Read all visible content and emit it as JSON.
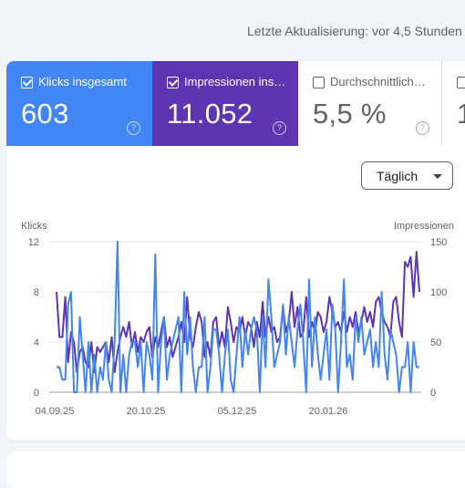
{
  "header": {
    "last_update": "Letzte Aktualisierung: vor 4,5 Stunden"
  },
  "metrics": [
    {
      "label": "Klicks insgesamt",
      "value": "603",
      "checked": true,
      "color": "#4285f4"
    },
    {
      "label": "Impressionen ins…",
      "value": "11.052",
      "checked": true,
      "color": "#5e35b1"
    },
    {
      "label": "Durchschnittlich…",
      "value": "5,5 %",
      "checked": false,
      "color": "#ffffff"
    },
    {
      "label": "",
      "value": "1",
      "checked": false,
      "color": "#ffffff"
    }
  ],
  "help_glyph": "?",
  "granularity": {
    "selected": "Täglich"
  },
  "chart_data": {
    "type": "line",
    "x_ticks": [
      "04.09.25",
      "20.10.25",
      "05.12.25",
      "20.01.26"
    ],
    "y_left": {
      "label": "Klicks",
      "range": [
        0,
        12
      ],
      "ticks": [
        0,
        4,
        8,
        12
      ]
    },
    "y_right": {
      "label": "Impressionen",
      "range": [
        0,
        150
      ],
      "ticks": [
        0,
        50,
        100,
        150
      ]
    },
    "grid": true,
    "series": [
      {
        "axis": "right",
        "color": "#5e35b1",
        "values": [
          100,
          55,
          55,
          95,
          30,
          60,
          50,
          20,
          40,
          45,
          30,
          25,
          50,
          20,
          45,
          40,
          45,
          50,
          30,
          55,
          20,
          40,
          55,
          65,
          55,
          70,
          45,
          60,
          40,
          55,
          50,
          60,
          65,
          35,
          55,
          45,
          60,
          75,
          45,
          55,
          35,
          45,
          55,
          70,
          50,
          95,
          55,
          45,
          65,
          80,
          70,
          35,
          50,
          35,
          70,
          75,
          45,
          60,
          45,
          85,
          70,
          50,
          65,
          60,
          75,
          55,
          70,
          65,
          45,
          70,
          55,
          90,
          55,
          75,
          60,
          65,
          50,
          55,
          85,
          60,
          70,
          100,
          65,
          85,
          55,
          60,
          95,
          55,
          70,
          60,
          80,
          75,
          60,
          70,
          95,
          80,
          65,
          70,
          60,
          80,
          60,
          75,
          65,
          80,
          60,
          70,
          85,
          70,
          80,
          65,
          90,
          95,
          80,
          70,
          65,
          55,
          90,
          95,
          70,
          55,
          130,
          125,
          135,
          95,
          140,
          100
        ]
      },
      {
        "axis": "left",
        "color": "#4285f4",
        "values": [
          2,
          2,
          1,
          1,
          7,
          8,
          0,
          0,
          6,
          3,
          0,
          4,
          0,
          3,
          0,
          2,
          1,
          4,
          1,
          0,
          4,
          12,
          0,
          3,
          0,
          3,
          4,
          4,
          2,
          4,
          0,
          4,
          3,
          1,
          11,
          0,
          4,
          6,
          1,
          3,
          4,
          5,
          6,
          0,
          8,
          3,
          6,
          2,
          0,
          2,
          2,
          6,
          0,
          2,
          5,
          5,
          3,
          0,
          3,
          5,
          1,
          0,
          3,
          6,
          2,
          5,
          3,
          5,
          6,
          5,
          0,
          6,
          2,
          9,
          6,
          2,
          3,
          4,
          7,
          3,
          6,
          4,
          2,
          5,
          7,
          4,
          0,
          9,
          2,
          6,
          3,
          1,
          3,
          5,
          1,
          7,
          5,
          0,
          4,
          9,
          2,
          3,
          1,
          6,
          4,
          6,
          3,
          4,
          5,
          2,
          4,
          2,
          8,
          3,
          1,
          5,
          4,
          3,
          0,
          2,
          2,
          4,
          0,
          4,
          2,
          2
        ]
      }
    ]
  }
}
